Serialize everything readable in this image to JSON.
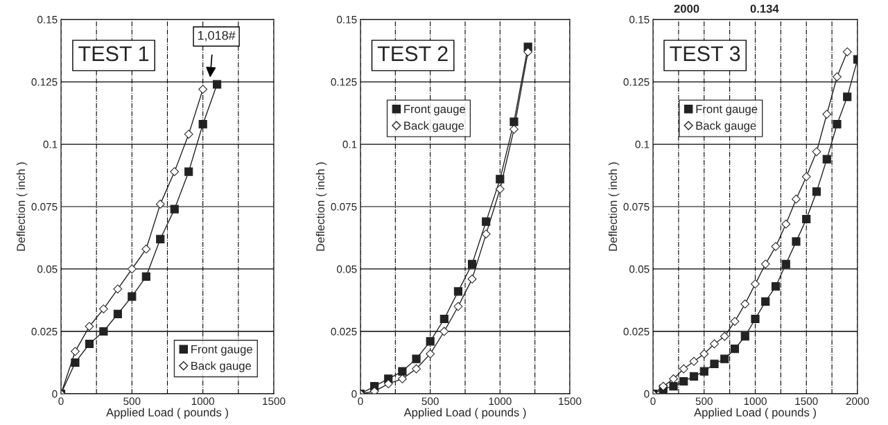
{
  "chart_data": [
    {
      "type": "line",
      "title": "TEST 1",
      "xlabel": "Applied Load ( pounds )",
      "ylabel": "Deflection ( inch )",
      "xlim": [
        0,
        1500
      ],
      "xticks": [
        0,
        {
          "value": 250,
          "label": null
        },
        500,
        {
          "value": 750,
          "label": null
        },
        1000,
        {
          "value": 1250,
          "label": null
        },
        1500
      ],
      "ylim": [
        0,
        0.15
      ],
      "yticks": [
        0,
        0.025,
        0.05,
        0.075,
        0.1,
        0.125,
        0.15
      ],
      "grid": true,
      "legend": "bottom right",
      "annotations": [
        "1,018#"
      ],
      "series": [
        {
          "name": "Front gauge",
          "color": "#222222",
          "marker": "square",
          "x": [
            0,
            100,
            200,
            300,
            400,
            500,
            600,
            700,
            800,
            900,
            1000,
            1100
          ],
          "values": [
            0,
            0.0125,
            0.02,
            0.025,
            0.032,
            0.039,
            0.047,
            0.062,
            0.074,
            0.089,
            0.108,
            0.124
          ]
        },
        {
          "name": "Back gauge",
          "color": "#222222",
          "marker": "diamond",
          "x": [
            0,
            100,
            200,
            300,
            400,
            500,
            600,
            700,
            800,
            900,
            1000
          ],
          "values": [
            0,
            0.017,
            0.027,
            0.034,
            0.042,
            0.05,
            0.058,
            0.076,
            0.089,
            0.104,
            0.122
          ]
        }
      ]
    },
    {
      "type": "line",
      "title": "TEST 2",
      "xlabel": "Applied Load ( pounds )",
      "ylabel": "Deflection ( inch )",
      "xlim": [
        0,
        1500
      ],
      "xticks": [
        0,
        {
          "value": 250,
          "label": null
        },
        500,
        {
          "value": 750,
          "label": null
        },
        1000,
        {
          "value": 1250,
          "label": null
        },
        1500
      ],
      "ylim": [
        0,
        0.15
      ],
      "yticks": [
        0,
        0.025,
        0.05,
        0.075,
        0.1,
        0.125,
        0.15
      ],
      "grid": true,
      "legend": "top left",
      "series": [
        {
          "name": "Front gauge",
          "color": "#222222",
          "marker": "square",
          "x": [
            0,
            100,
            200,
            300,
            400,
            500,
            600,
            700,
            800,
            900,
            1000,
            1100,
            1200
          ],
          "values": [
            0,
            0.003,
            0.006,
            0.009,
            0.014,
            0.021,
            0.03,
            0.041,
            0.052,
            0.069,
            0.086,
            0.109,
            0.139
          ]
        },
        {
          "name": "Back gauge",
          "color": "#222222",
          "marker": "diamond",
          "x": [
            0,
            100,
            200,
            300,
            400,
            500,
            600,
            700,
            800,
            900,
            1000,
            1100,
            1200
          ],
          "values": [
            0,
            0.001,
            0.004,
            0.006,
            0.01,
            0.016,
            0.025,
            0.035,
            0.046,
            0.064,
            0.082,
            0.106,
            0.137
          ]
        }
      ]
    },
    {
      "type": "line",
      "title": "TEST 3",
      "xlabel": "Applied Load ( pounds )",
      "ylabel": "Deflection ( inch )",
      "xlim": [
        0,
        2000
      ],
      "xticks": [
        0,
        {
          "value": 250,
          "label": null
        },
        500,
        {
          "value": 750,
          "label": null
        },
        1000,
        {
          "value": 1250,
          "label": null
        },
        1500,
        {
          "value": 1750,
          "label": null
        },
        2000
      ],
      "ylim": [
        0,
        0.15
      ],
      "yticks": [
        0,
        0.025,
        0.05,
        0.075,
        0.1,
        0.125,
        0.15
      ],
      "grid": true,
      "legend": "top left",
      "annotations": [
        "2000",
        "0.134"
      ],
      "series": [
        {
          "name": "Front gauge",
          "color": "#222222",
          "marker": "square",
          "x": [
            0,
            100,
            200,
            300,
            400,
            500,
            600,
            700,
            800,
            900,
            1000,
            1100,
            1200,
            1300,
            1400,
            1500,
            1600,
            1700,
            1800,
            1900,
            2000
          ],
          "values": [
            0,
            0.002,
            0.003,
            0.005,
            0.007,
            0.009,
            0.012,
            0.014,
            0.018,
            0.023,
            0.03,
            0.037,
            0.043,
            0.052,
            0.061,
            0.07,
            0.081,
            0.094,
            0.108,
            0.119,
            0.134
          ]
        },
        {
          "name": "Back gauge",
          "color": "#222222",
          "marker": "diamond",
          "x": [
            0,
            100,
            200,
            300,
            400,
            500,
            600,
            700,
            800,
            900,
            1000,
            1100,
            1200,
            1300,
            1400,
            1500,
            1600,
            1700,
            1800,
            1900
          ],
          "values": [
            0,
            0.003,
            0.006,
            0.01,
            0.013,
            0.016,
            0.02,
            0.023,
            0.029,
            0.036,
            0.044,
            0.052,
            0.059,
            0.068,
            0.078,
            0.087,
            0.097,
            0.112,
            0.127,
            0.137
          ]
        }
      ]
    }
  ]
}
